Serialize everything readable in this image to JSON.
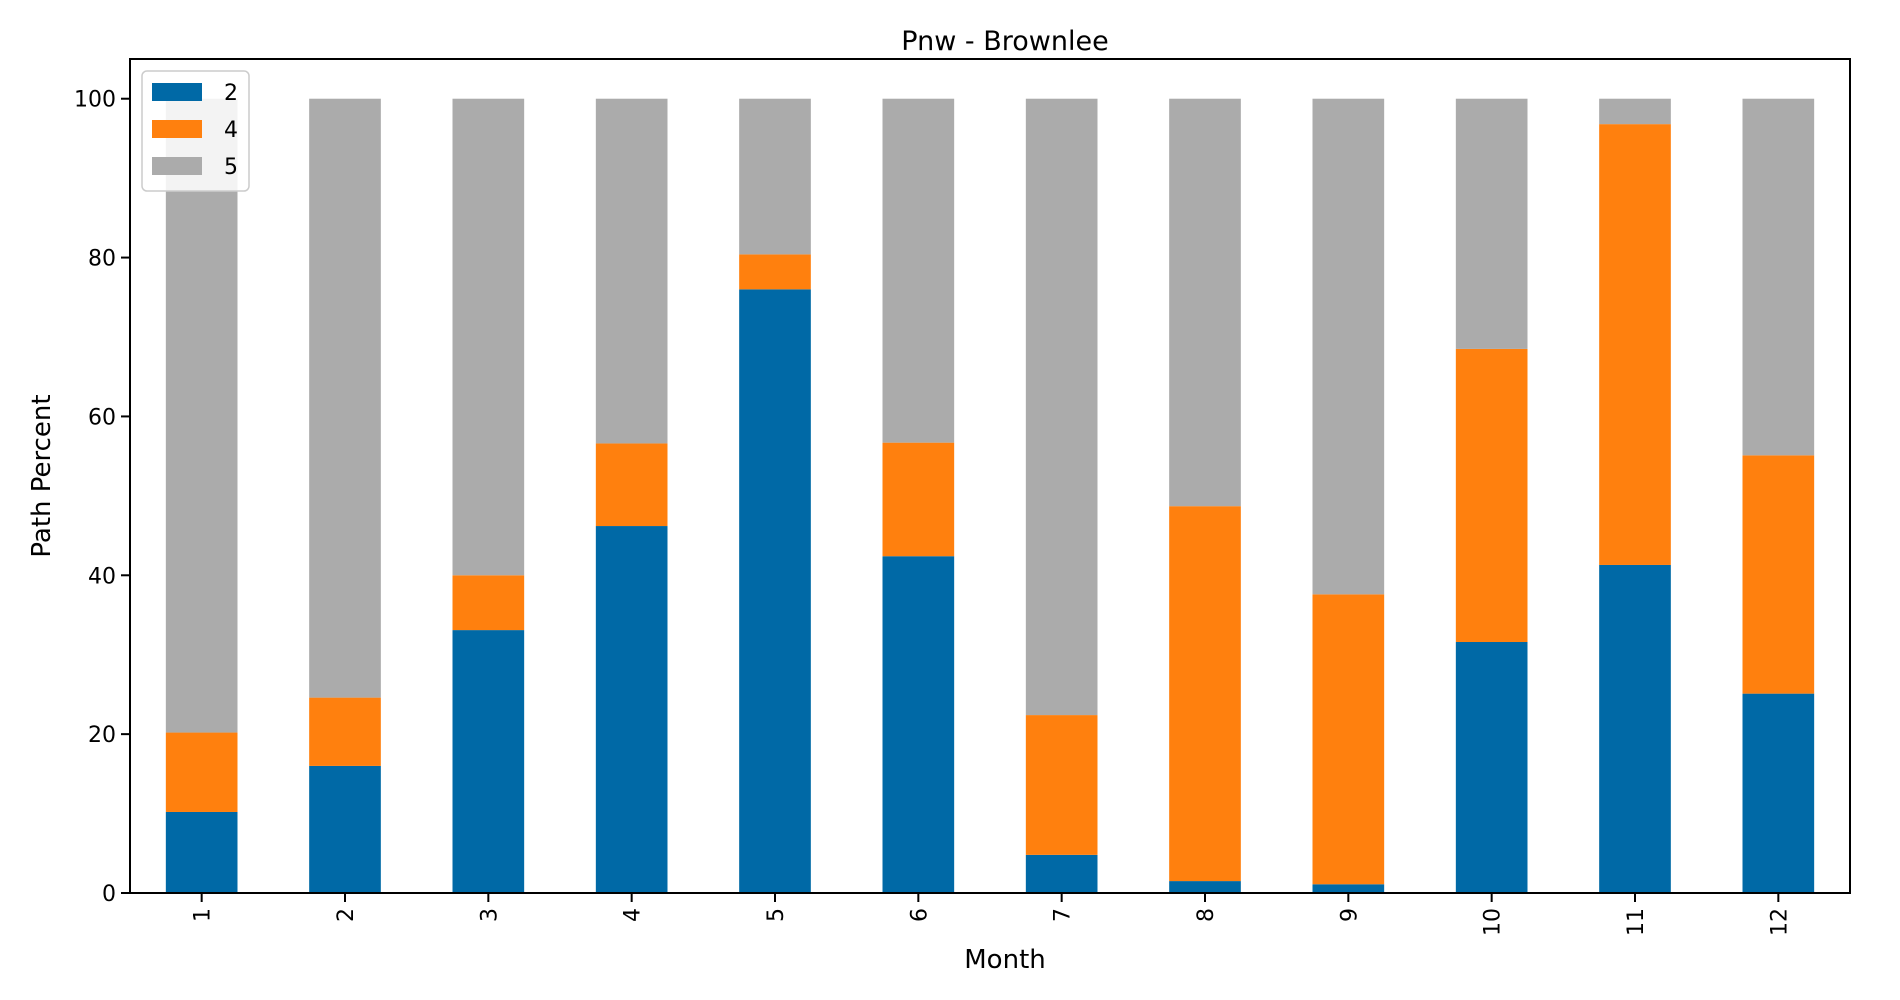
{
  "chart_data": {
    "type": "bar",
    "stacked": true,
    "title": "Pnw - Brownlee",
    "xlabel": "Month",
    "ylabel": "Path Percent",
    "categories": [
      "1",
      "2",
      "3",
      "4",
      "5",
      "6",
      "7",
      "8",
      "9",
      "10",
      "11",
      "12"
    ],
    "ylim": [
      0,
      105
    ],
    "yticks": [
      "0",
      "20",
      "40",
      "60",
      "80",
      "100"
    ],
    "grid": false,
    "legend_position": "top-left",
    "series": [
      {
        "name": "2",
        "color": "#0069a6",
        "values": [
          10.2,
          16.0,
          33.1,
          46.2,
          76.0,
          42.4,
          4.8,
          1.5,
          1.1,
          31.6,
          41.3,
          25.1
        ]
      },
      {
        "name": "4",
        "color": "#ff800e",
        "values": [
          10.0,
          8.6,
          6.9,
          10.4,
          4.4,
          14.3,
          17.6,
          47.2,
          36.5,
          36.9,
          55.5,
          30.0
        ]
      },
      {
        "name": "5",
        "color": "#ababab",
        "values": [
          79.8,
          75.4,
          60.0,
          43.4,
          19.6,
          43.3,
          77.6,
          51.3,
          62.4,
          31.5,
          3.2,
          44.9
        ]
      }
    ]
  }
}
